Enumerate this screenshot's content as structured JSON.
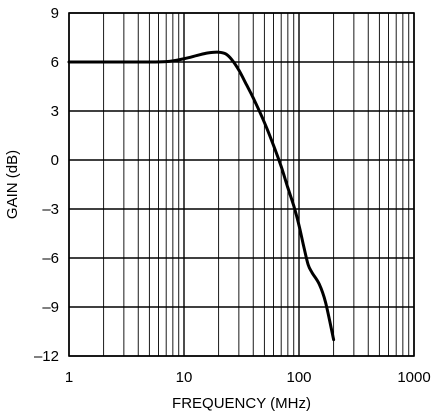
{
  "chart_data": {
    "type": "line",
    "title": "",
    "xlabel": "FREQUENCY (MHz)",
    "ylabel": "GAIN (dB)",
    "x_scale": "log",
    "xlim": [
      1,
      1000
    ],
    "ylim": [
      -12,
      9
    ],
    "x_ticks": [
      1,
      10,
      100,
      1000
    ],
    "x_tick_labels": [
      "1",
      "10",
      "100",
      "1000"
    ],
    "y_ticks": [
      9,
      6,
      3,
      0,
      -3,
      -6,
      -9,
      -12
    ],
    "y_tick_labels": [
      "9",
      "6",
      "3",
      "0",
      "–3",
      "–6",
      "–9",
      "–12"
    ],
    "grid": true,
    "legend": "none",
    "line_color": "#000000",
    "series": [
      {
        "x": [
          1,
          2,
          4,
          7,
          10,
          13,
          16,
          20,
          23,
          26,
          30,
          35,
          40,
          50,
          60,
          70,
          80,
          90,
          100,
          110,
          120,
          130,
          150,
          170,
          200
        ],
        "y": [
          6.0,
          6.0,
          6.0,
          6.02,
          6.2,
          6.4,
          6.55,
          6.6,
          6.5,
          6.15,
          5.5,
          4.6,
          3.8,
          2.3,
          0.9,
          -0.4,
          -1.7,
          -2.8,
          -4.0,
          -5.3,
          -6.4,
          -6.9,
          -7.6,
          -8.7,
          -11.0
        ]
      }
    ]
  }
}
